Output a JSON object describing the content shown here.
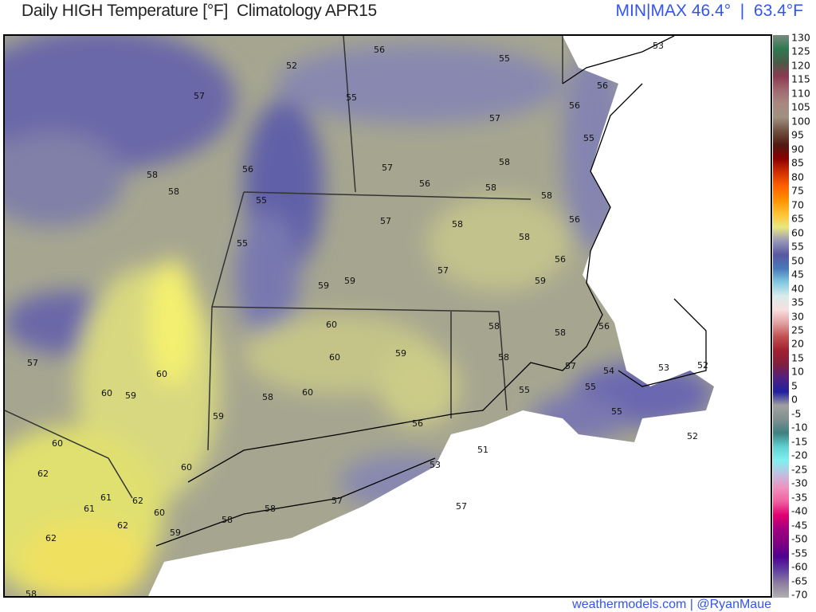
{
  "header": {
    "title": "Daily HIGH Temperature [°F]  Climatology APR15",
    "minmax": "MIN|MAX 46.4°  |  63.4°F"
  },
  "footer": {
    "credit": "weathermodels.com | @RyanMaue"
  },
  "colorbar": {
    "ticks": [
      "130",
      "125",
      "120",
      "115",
      "110",
      "105",
      "100",
      "95",
      "90",
      "85",
      "80",
      "75",
      "70",
      "65",
      "60",
      "55",
      "50",
      "45",
      "40",
      "35",
      "30",
      "25",
      "20",
      "15",
      "10",
      "5",
      "0",
      "-5",
      "-10",
      "-15",
      "-20",
      "-25",
      "-30",
      "-35",
      "-40",
      "-45",
      "-50",
      "-55",
      "-60",
      "-65",
      "-70"
    ],
    "colors": [
      "#7a8a80",
      "#2e7a50",
      "#4a5a48",
      "#8a3a50",
      "#a06870",
      "#a88880",
      "#a09080",
      "#705040",
      "#501a10",
      "#8a0000",
      "#d03000",
      "#ff6000",
      "#ff9000",
      "#ffc030",
      "#e8e880",
      "#9898b8",
      "#5858a0",
      "#4878b8",
      "#80c8e0",
      "#d8ecec",
      "#f8e0e0",
      "#e0a0a0",
      "#c05050",
      "#a02030",
      "#802040",
      "#502080",
      "#2020a0",
      "#a0a0a0",
      "#809090",
      "#408080",
      "#60d0d0",
      "#80f0f0",
      "#c0c0e0",
      "#f090c0",
      "#f060a0",
      "#e00070",
      "#a00080",
      "#800080",
      "#500090",
      "#6040a0",
      "#9080a0",
      "#b0b0b0"
    ]
  },
  "map": {
    "labels": [
      "52",
      "56",
      "55",
      "57",
      "55",
      "53",
      "56",
      "56",
      "57",
      "55",
      "58",
      "57",
      "56",
      "58",
      "58",
      "58",
      "56",
      "55",
      "57",
      "58",
      "58",
      "56",
      "55",
      "58",
      "57",
      "59",
      "59",
      "60",
      "60",
      "59",
      "58",
      "58",
      "56",
      "57",
      "60",
      "60",
      "59",
      "58",
      "59",
      "55",
      "56",
      "55",
      "54",
      "53",
      "52",
      "55",
      "52",
      "57",
      "59",
      "60",
      "56",
      "58",
      "60",
      "53",
      "51",
      "57",
      "58",
      "57",
      "58",
      "60",
      "62",
      "61",
      "61",
      "62",
      "60",
      "59",
      "62",
      "62",
      "58"
    ]
  }
}
